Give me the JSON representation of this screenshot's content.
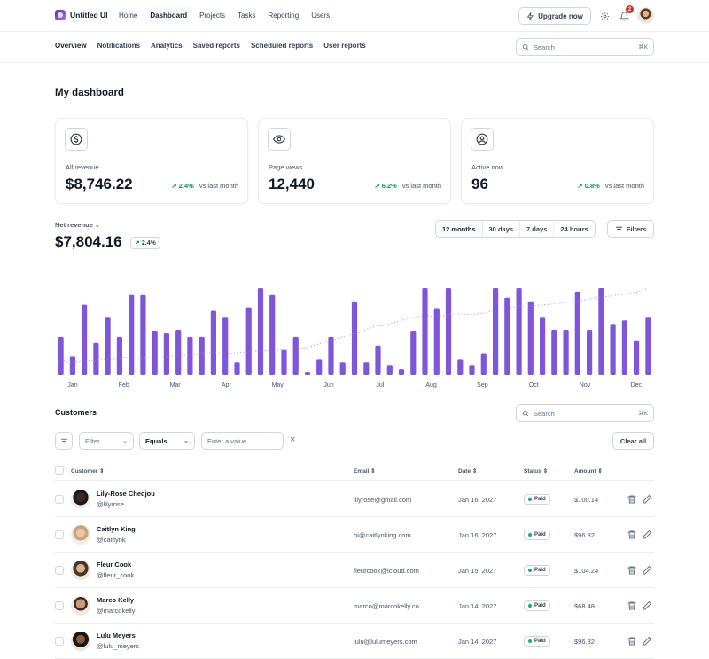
{
  "app": {
    "name": "Untitled UI"
  },
  "topnav": {
    "items": [
      "Home",
      "Dashboard",
      "Projects",
      "Tasks",
      "Reporting",
      "Users"
    ],
    "active": "Dashboard"
  },
  "upgrade_label": "Upgrade now",
  "notifications_count": "2",
  "subnav": {
    "items": [
      "Overview",
      "Notifications",
      "Analytics",
      "Saved reports",
      "Scheduled reports",
      "User reports"
    ],
    "active": "Overview"
  },
  "search": {
    "placeholder": "Search",
    "shortcut": "⌘K"
  },
  "page_title": "My dashboard",
  "stats": [
    {
      "label": "All revenue",
      "value": "$8,746.22",
      "change": "2.4%",
      "suffix": "vs last month",
      "icon": "dollar-icon"
    },
    {
      "label": "Page views",
      "value": "12,440",
      "change": "6.2%",
      "suffix": "vs last month",
      "icon": "eye-icon"
    },
    {
      "label": "Active now",
      "value": "96",
      "change": "0.8%",
      "suffix": "vs last month",
      "icon": "user-circle-icon"
    }
  ],
  "net_revenue": {
    "label": "Net revenue",
    "value": "$7,804.16",
    "change": "2.4%"
  },
  "ranges": [
    "12 months",
    "30 days",
    "7 days",
    "24 hours"
  ],
  "active_range": "12 months",
  "filters_label": "Filters",
  "chart_data": {
    "type": "bar",
    "months": [
      "Jan",
      "Feb",
      "Mar",
      "Apr",
      "May",
      "Jun",
      "Jul",
      "Aug",
      "Sep",
      "Oct",
      "Nov",
      "Dec"
    ],
    "values": [
      44,
      22,
      81,
      37,
      67,
      44,
      92,
      92,
      51,
      48,
      52,
      44,
      44,
      74,
      67,
      15,
      78,
      100,
      92,
      29,
      44,
      4,
      18,
      44,
      15,
      85,
      15,
      34,
      11,
      7,
      51,
      100,
      77,
      100,
      18,
      11,
      25,
      100,
      89,
      100,
      85,
      67,
      52,
      52,
      96,
      52,
      100,
      59,
      63,
      40,
      67
    ],
    "trend": [
      18,
      16,
      17,
      18,
      19,
      20,
      22,
      21,
      22,
      23,
      24,
      25,
      26,
      27,
      26,
      27,
      28,
      29,
      30,
      31,
      32,
      33,
      38,
      42,
      46,
      50,
      55,
      60,
      62,
      66,
      70,
      72,
      71,
      73,
      74,
      73,
      75,
      78,
      80,
      84,
      83,
      85,
      86,
      88,
      90,
      92,
      94,
      96,
      98,
      100,
      105
    ]
  },
  "customers": {
    "title": "Customers",
    "search_placeholder": "Search",
    "search_shortcut": "⌘K",
    "filter_placeholder": "Filter",
    "operator": "Equals",
    "value_placeholder": "Enter a value",
    "clear_all": "Clear all",
    "columns": [
      "Customer",
      "Email",
      "Date",
      "Status",
      "Amount"
    ],
    "rows": [
      {
        "name": "Lily-Rose Chedjou",
        "handle": "@lilyrose",
        "email": "lilyrose@gmail.com",
        "date": "Jan 16, 2027",
        "status": "Paid",
        "amount": "$100.14"
      },
      {
        "name": "Caitlyn King",
        "handle": "@caitlynk",
        "email": "hi@caitlynking.com",
        "date": "Jan 16, 2027",
        "status": "Paid",
        "amount": "$96.32"
      },
      {
        "name": "Fleur Cook",
        "handle": "@fleur_cook",
        "email": "fleurcook@icloud.com",
        "date": "Jan 15, 2027",
        "status": "Paid",
        "amount": "$104.24"
      },
      {
        "name": "Marco Kelly",
        "handle": "@marcokelly",
        "email": "marco@marcokelly.co",
        "date": "Jan 14, 2027",
        "status": "Paid",
        "amount": "$68.48"
      },
      {
        "name": "Lulu Meyers",
        "handle": "@lulu_meyers",
        "email": "lulu@lulumeyers.com",
        "date": "Jan 14, 2027",
        "status": "Paid",
        "amount": "$96.32"
      }
    ]
  }
}
